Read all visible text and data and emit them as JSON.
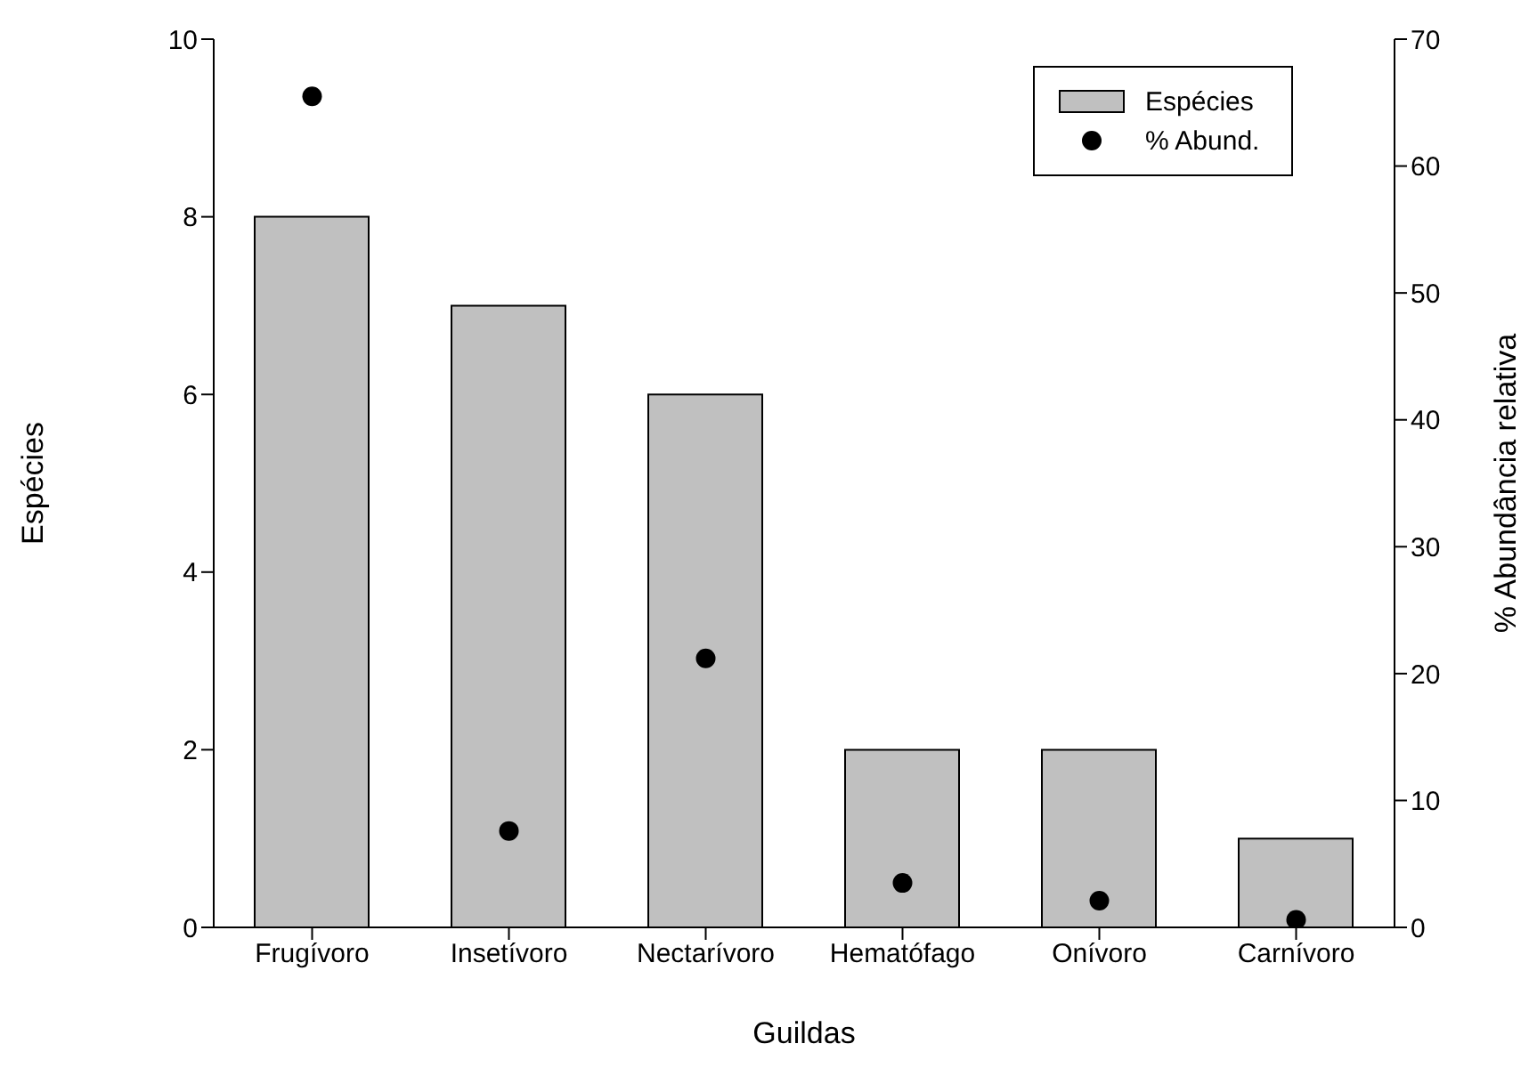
{
  "chart_data": {
    "type": "bar",
    "xlabel": "Guildas",
    "ylabel": "Espécies",
    "y2label": "% Abundância relativa",
    "categories": [
      "Frugívoro",
      "Insetívoro",
      "Nectarívoro",
      "Hematófago",
      "Onívoro",
      "Carnívoro"
    ],
    "series": [
      {
        "name": "Espécies",
        "color": "#c0c0c0",
        "values": [
          8,
          7,
          6,
          2,
          2,
          1
        ]
      },
      {
        "name": "% Abund.",
        "type": "scatter",
        "color": "#000000",
        "axis": "y2",
        "marker": "circle",
        "values": [
          65.5,
          7.6,
          21.2,
          3.5,
          2.1,
          0.6
        ]
      }
    ],
    "ylim": [
      0,
      10
    ],
    "yticks": [
      0,
      2,
      4,
      6,
      8,
      10
    ],
    "y2lim": [
      0,
      70
    ],
    "y2ticks": [
      0,
      10,
      20,
      30,
      40,
      50,
      60,
      70
    ],
    "legend": "top right"
  }
}
